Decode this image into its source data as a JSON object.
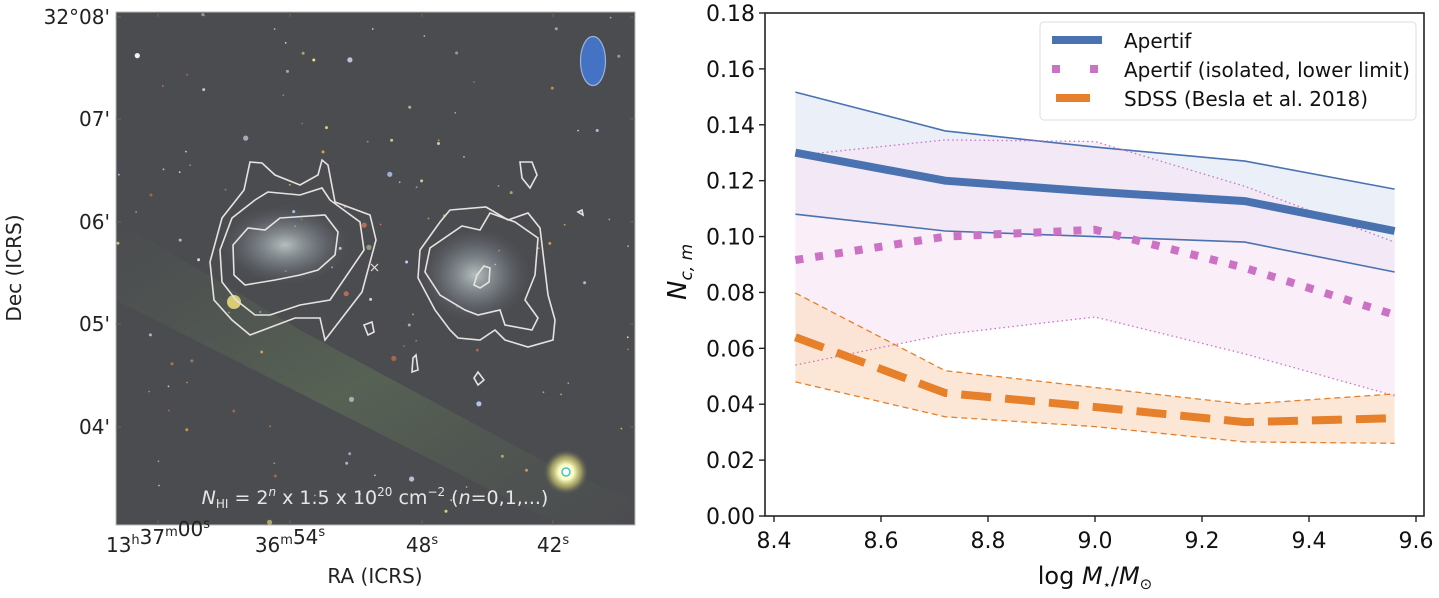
{
  "chart_data": [
    {
      "type": "image",
      "panel": "left",
      "description": "Optical colour image with HI column density contours of two galaxies",
      "xlabel": "RA (ICRS)",
      "ylabel": "Dec (ICRS)",
      "x_tick_labels": [
        {
          "h": "13",
          "m": "37",
          "s": "00",
          "text": "13h37m00s"
        },
        {
          "m": "36",
          "s": "54",
          "text": "36m54s"
        },
        {
          "s": "48",
          "text": "48s"
        },
        {
          "s": "42",
          "text": "42s"
        }
      ],
      "y_tick_labels": [
        "32°08'",
        "07'",
        "06'",
        "05'",
        "04'"
      ],
      "annotation": {
        "symbol": "N",
        "subscript": "HI",
        "text_mid": " = 2",
        "exp_n": "n",
        "text_mid2": " x 1.5 x 10",
        "exp_20": "20",
        "unit": " cm",
        "exp_unit": "−2",
        "suffix_a": " (",
        "suffix_n": "n",
        "suffix_b": "=0,1,...)"
      },
      "beam_color": "#4472c4",
      "contour_color": "#e6e2e0",
      "background_color": "#4a4b4e"
    },
    {
      "type": "line",
      "panel": "right",
      "xlabel": "log M⋆/M⊙",
      "ylabel": "N_c,m",
      "xlim": [
        8.38,
        9.62
      ],
      "ylim": [
        0.0,
        0.18
      ],
      "x_ticks": [
        8.4,
        8.6,
        8.8,
        9.0,
        9.2,
        9.4,
        9.6
      ],
      "x_tick_labels": [
        "8.4",
        "8.6",
        "8.8",
        "9.0",
        "9.2",
        "9.4",
        "9.6"
      ],
      "y_ticks": [
        0.0,
        0.02,
        0.04,
        0.06,
        0.08,
        0.1,
        0.12,
        0.14,
        0.16,
        0.18
      ],
      "y_tick_labels": [
        "0.00",
        "0.02",
        "0.04",
        "0.06",
        "0.08",
        "0.10",
        "0.12",
        "0.14",
        "0.16",
        "0.18"
      ],
      "grid": false,
      "legend_position": "top-right",
      "x": [
        8.44,
        8.72,
        9.0,
        9.28,
        9.56
      ],
      "series": [
        {
          "name": "Apertif",
          "color": "#4a72b0",
          "style": "solid",
          "values": [
            0.13,
            0.12,
            0.116,
            0.1127,
            0.102
          ],
          "upper": [
            0.1517,
            0.1378,
            0.132,
            0.127,
            0.117
          ],
          "lower": [
            0.108,
            0.102,
            0.1,
            0.098,
            0.0873
          ],
          "fill": "#dfe7f4"
        },
        {
          "name": "Apertif (isolated, lower limit)",
          "color": "#cc72c4",
          "style": "dotted",
          "values": [
            0.0916,
            0.1,
            0.1024,
            0.0888,
            0.072
          ],
          "upper": [
            0.129,
            0.1346,
            0.134,
            0.118,
            0.098
          ],
          "lower": [
            0.054,
            0.065,
            0.0712,
            0.058,
            0.043
          ],
          "fill": "#f7e3f5"
        },
        {
          "name": "SDSS (Besla et al. 2018)",
          "color": "#e6802a",
          "style": "dashed",
          "values": [
            0.064,
            0.044,
            0.039,
            0.0336,
            0.035
          ],
          "upper": [
            0.0798,
            0.052,
            0.046,
            0.04,
            0.0437
          ],
          "lower": [
            0.048,
            0.0355,
            0.032,
            0.0265,
            0.026
          ],
          "fill": "#fbe0cc"
        }
      ]
    }
  ]
}
